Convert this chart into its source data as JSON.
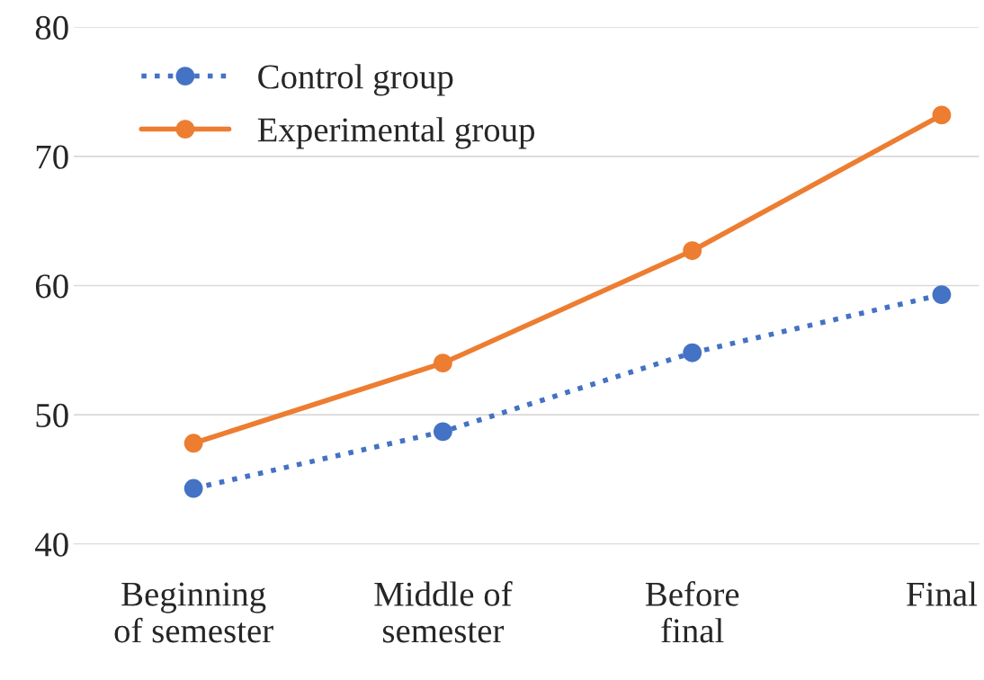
{
  "chart_data": {
    "type": "line",
    "categories": [
      "Beginning\nof semester",
      "Middle of\nsemester",
      "Before\nfinal",
      "Final"
    ],
    "series": [
      {
        "name": "Control group",
        "color": "#4472c4",
        "values": [
          44.3,
          48.7,
          54.8,
          59.3
        ],
        "line_style": "dotted",
        "marker": "circle"
      },
      {
        "name": "Experimental group",
        "color": "#ed7d31",
        "values": [
          47.8,
          54.0,
          62.7,
          73.2
        ],
        "line_style": "solid",
        "marker": "circle"
      }
    ],
    "ylim": [
      40,
      80
    ],
    "yticks": [
      40,
      50,
      60,
      70,
      80
    ],
    "grid": "y",
    "legend": "top left"
  }
}
